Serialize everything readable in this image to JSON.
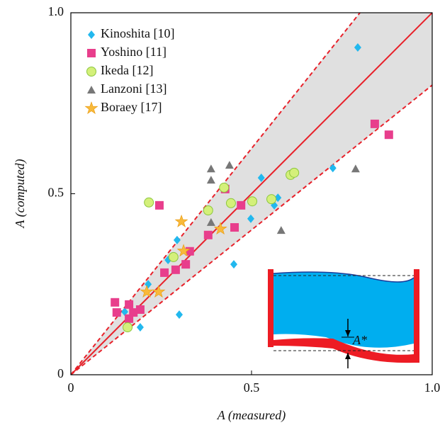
{
  "chart_data": {
    "type": "scatter",
    "x_label": "A (measured)",
    "y_label": "A (computed)",
    "xlim": [
      0,
      1
    ],
    "ylim": [
      0,
      1
    ],
    "xticks": [
      0,
      0.5,
      {
        "value": 1,
        "label": "1.0"
      }
    ],
    "yticks": [
      0,
      0.5,
      {
        "value": 1,
        "label": "1.0"
      }
    ],
    "identity_line_color": "#e8212a",
    "band_slopes": [
      0.8,
      1.25
    ],
    "band_color": "#e0e0e0",
    "legend": "upper left",
    "inset_label": "A*",
    "series": [
      {
        "name": "Kinoshita [10]",
        "color": "#22b8ee",
        "marker": "diamond",
        "x": [
          0.794,
          0.725,
          0.527,
          0.573,
          0.563,
          0.498,
          0.451,
          0.294,
          0.214,
          0.3,
          0.192,
          0.149,
          0.269
        ],
        "values": [
          0.904,
          0.571,
          0.544,
          0.489,
          0.468,
          0.431,
          0.305,
          0.372,
          0.25,
          0.166,
          0.131,
          0.174,
          0.317
        ]
      },
      {
        "name": "Yoshino [11]",
        "color": "#e83e8c",
        "marker": "square",
        "x": [
          0.841,
          0.88,
          0.245,
          0.471,
          0.427,
          0.453,
          0.38,
          0.329,
          0.318,
          0.29,
          0.259,
          0.122,
          0.127,
          0.161,
          0.173,
          0.192,
          0.161
        ],
        "values": [
          0.693,
          0.663,
          0.468,
          0.468,
          0.513,
          0.407,
          0.386,
          0.341,
          0.305,
          0.29,
          0.282,
          0.2,
          0.172,
          0.194,
          0.172,
          0.18,
          0.155
        ]
      },
      {
        "name": "Ikeda [12]",
        "color": "#d4f07a",
        "marker": "circle",
        "x": [
          0.216,
          0.38,
          0.424,
          0.443,
          0.502,
          0.555,
          0.608,
          0.618,
          0.284,
          0.157
        ],
        "values": [
          0.476,
          0.454,
          0.517,
          0.474,
          0.479,
          0.485,
          0.552,
          0.558,
          0.325,
          0.131
        ]
      },
      {
        "name": "Lanzoni [13]",
        "color": "#777777",
        "marker": "triangle",
        "x": [
          0.388,
          0.439,
          0.388,
          0.388,
          0.582,
          0.788
        ],
        "values": [
          0.569,
          0.579,
          0.538,
          0.421,
          0.399,
          0.569
        ]
      },
      {
        "name": "Boraey [17]",
        "color": "#f8b93a",
        "marker": "star",
        "x": [
          0.306,
          0.414,
          0.312,
          0.21,
          0.243
        ],
        "values": [
          0.423,
          0.403,
          0.342,
          0.229,
          0.229
        ]
      }
    ]
  }
}
